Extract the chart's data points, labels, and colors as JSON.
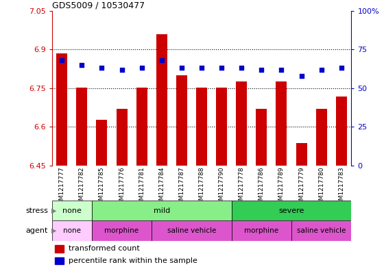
{
  "title": "GDS5009 / 10530477",
  "samples": [
    "GSM1217777",
    "GSM1217782",
    "GSM1217785",
    "GSM1217776",
    "GSM1217781",
    "GSM1217784",
    "GSM1217787",
    "GSM1217788",
    "GSM1217790",
    "GSM1217778",
    "GSM1217786",
    "GSM1217789",
    "GSM1217779",
    "GSM1217780",
    "GSM1217783"
  ],
  "bar_values": [
    6.885,
    6.752,
    6.628,
    6.67,
    6.752,
    6.96,
    6.8,
    6.752,
    6.752,
    6.776,
    6.67,
    6.776,
    6.536,
    6.67,
    6.718
  ],
  "percentile_values": [
    68,
    65,
    63,
    62,
    63,
    68,
    63,
    63,
    63,
    63,
    62,
    62,
    58,
    62,
    63
  ],
  "ymin": 6.45,
  "ymax": 7.05,
  "yticks": [
    6.45,
    6.6,
    6.75,
    6.9,
    7.05
  ],
  "ytick_labels": [
    "6.45",
    "6.6",
    "6.75",
    "6.9",
    "7.05"
  ],
  "right_yticks": [
    0,
    25,
    50,
    75,
    100
  ],
  "right_ytick_labels": [
    "0",
    "25",
    "50",
    "75",
    "100%"
  ],
  "bar_color": "#cc0000",
  "dot_color": "#0000cc",
  "bar_width": 0.55,
  "grid_lines": [
    6.6,
    6.75,
    6.9
  ],
  "stress_groups": [
    {
      "label": "none",
      "start": 0,
      "end": 2,
      "color": "#ccffcc"
    },
    {
      "label": "mild",
      "start": 2,
      "end": 9,
      "color": "#88ee88"
    },
    {
      "label": "severe",
      "start": 9,
      "end": 15,
      "color": "#33cc55"
    }
  ],
  "agent_groups": [
    {
      "label": "none",
      "start": 0,
      "end": 2,
      "color": "#ffccff"
    },
    {
      "label": "morphine",
      "start": 2,
      "end": 5,
      "color": "#dd55cc"
    },
    {
      "label": "saline vehicle",
      "start": 5,
      "end": 9,
      "color": "#dd55cc"
    },
    {
      "label": "morphine",
      "start": 9,
      "end": 12,
      "color": "#dd55cc"
    },
    {
      "label": "saline vehicle",
      "start": 12,
      "end": 15,
      "color": "#dd55cc"
    }
  ],
  "left_axis_color": "#cc0000",
  "right_axis_color": "#0000cc",
  "legend_bar_color": "#cc0000",
  "legend_dot_color": "#0000cc",
  "plot_bg_color": "#ffffff"
}
